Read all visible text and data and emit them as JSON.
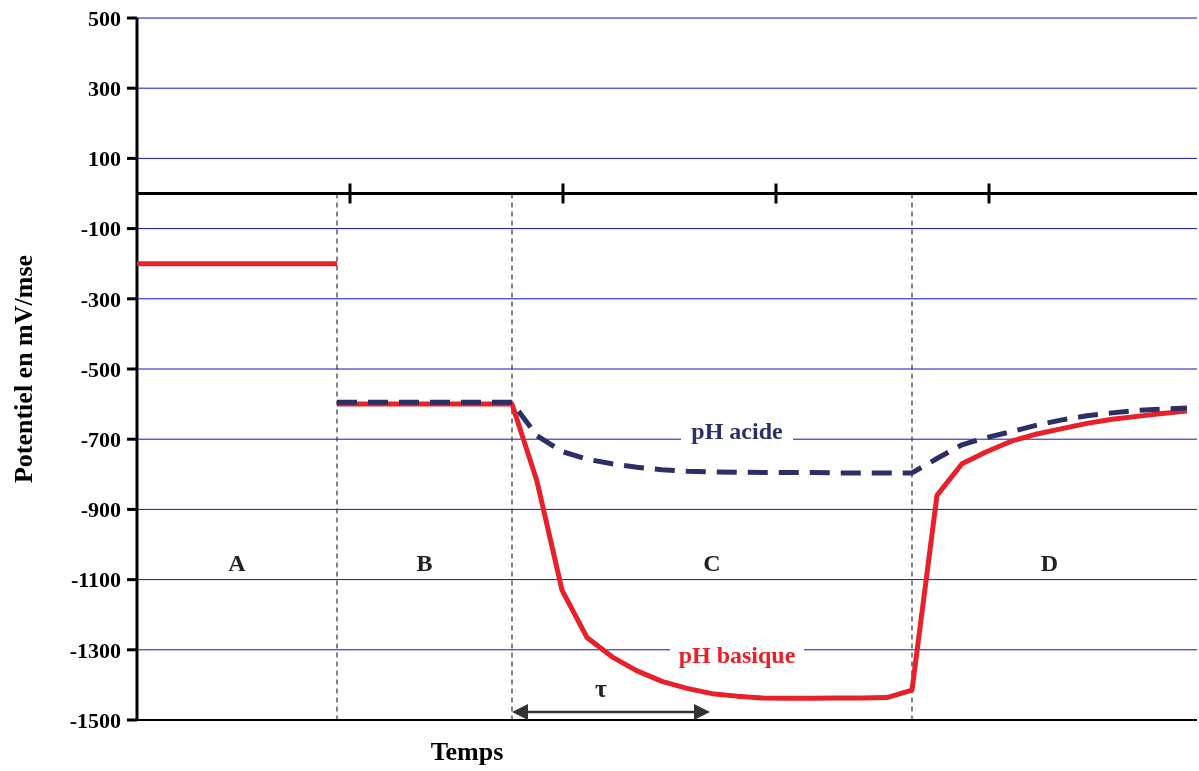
{
  "chart_data": {
    "type": "line",
    "xlabel": "Temps",
    "ylabel": "Potentiel en mV/mse",
    "categories": [
      null,
      null,
      null,
      null,
      null,
      null,
      null,
      null,
      null,
      null,
      null,
      null,
      null,
      null,
      null,
      null,
      null,
      null,
      null,
      null,
      null,
      null,
      null,
      null,
      null,
      null,
      null,
      null,
      null,
      null,
      null,
      null,
      null,
      null,
      null,
      null,
      null,
      null,
      null,
      null,
      null,
      null,
      null
    ],
    "ylim": [
      -1500,
      500
    ],
    "yticks": [
      500,
      300,
      100,
      -100,
      -300,
      -500,
      -700,
      -900,
      -1100,
      -1300,
      -1500
    ],
    "grid": true,
    "tick_labels": "y",
    "series": [
      {
        "color": "#e8202a",
        "line_style": "solid",
        "values": [
          -200,
          -200,
          -200,
          -200,
          -200,
          -200,
          -200,
          -200,
          -200,
          null,
          null,
          null,
          null,
          null,
          null,
          null,
          null,
          null,
          null,
          null,
          null,
          null,
          null,
          null,
          null,
          null,
          null,
          null,
          null,
          null,
          null,
          null,
          null,
          null,
          null,
          null,
          null,
          null,
          null,
          null,
          null,
          null,
          null
        ]
      },
      {
        "name": "pH basique",
        "color": "#e8202a",
        "line_style": "solid",
        "values": [
          null,
          null,
          null,
          null,
          null,
          null,
          null,
          null,
          -600,
          -600,
          -600,
          -600,
          -600,
          -600,
          -600,
          -600,
          -820,
          -1130,
          -1265,
          -1320,
          -1360,
          -1390,
          -1410,
          -1425,
          -1432,
          -1437,
          -1438,
          -1438,
          -1437,
          -1437,
          -1436,
          -1415,
          -860,
          -770,
          -735,
          -705,
          -685,
          -670,
          -655,
          -643,
          -635,
          -627,
          -620
        ]
      },
      {
        "name": "pH acide",
        "color": "#2b2f66",
        "line_style": "dashed",
        "values": [
          null,
          null,
          null,
          null,
          null,
          null,
          null,
          null,
          -595,
          -595,
          -595,
          -595,
          -595,
          -595,
          -595,
          -595,
          -690,
          -735,
          -757,
          -770,
          -780,
          -787,
          -791,
          -793,
          -794,
          -795,
          -795,
          -795,
          -796,
          -796,
          -796,
          -796,
          -755,
          -716,
          -695,
          -678,
          -660,
          -645,
          -633,
          -625,
          -618,
          -614,
          -611
        ]
      }
    ],
    "annotations": [
      "A",
      "B",
      "C",
      "D",
      "τ"
    ]
  }
}
